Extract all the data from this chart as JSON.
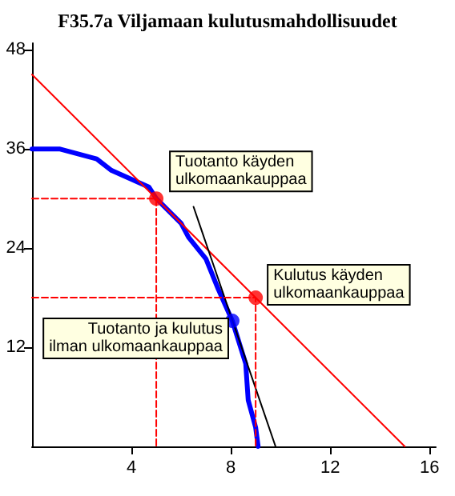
{
  "chart_data": {
    "type": "line",
    "title": "F35.7a Viljamaan kulutusmahdollisuudet",
    "xlim": [
      0,
      16.25
    ],
    "ylim": [
      0,
      48.8
    ],
    "xticks": [
      4,
      8,
      12,
      16
    ],
    "yticks": [
      12,
      24,
      36,
      48
    ],
    "grid": false,
    "series": [
      {
        "color": "#0000ff",
        "marker": "none",
        "line_style": "solid",
        "x": [
          0,
          1.1,
          2.6,
          3.2,
          4.7,
          5,
          6,
          6.3,
          7,
          7.5,
          8.06,
          8.6,
          8.7,
          9,
          9.1
        ],
        "values": [
          36,
          36,
          34.8,
          33.4,
          31.4,
          30,
          27,
          25.3,
          22.7,
          19,
          15.2,
          10,
          5.6,
          2.3,
          0
        ]
      },
      {
        "color": "#ff0000",
        "marker": "none",
        "line_style": "solid",
        "x": [
          0,
          15
        ],
        "values": [
          45,
          0
        ]
      },
      {
        "color": "#000000",
        "marker": "none",
        "line_style": "solid",
        "x": [
          6.5,
          9.8
        ],
        "values": [
          29,
          0
        ]
      },
      {
        "color": "#ff0000",
        "marker": "none",
        "line_style": "dashed",
        "x": [
          0,
          5,
          5
        ],
        "values": [
          30,
          30,
          0
        ]
      },
      {
        "color": "#ff0000",
        "marker": "none",
        "line_style": "dashed",
        "x": [
          0,
          9,
          9
        ],
        "values": [
          18,
          18,
          0
        ]
      },
      {
        "type": "scatter",
        "color": "#ff0000",
        "marker": "circle",
        "x": [
          5,
          9
        ],
        "values": [
          30,
          18
        ]
      },
      {
        "type": "scatter",
        "color": "#0000ff",
        "marker": "circle",
        "x": [
          8.06
        ],
        "values": [
          15.2
        ]
      }
    ],
    "annotations": [
      {
        "text": "Tuotanto käyden\nulkomaankauppaa",
        "x": 5,
        "y": 30
      },
      {
        "text": "Kulutus käyden\nulkomaankauppaa",
        "x": 9,
        "y": 18
      },
      {
        "text": "Tuotanto ja kulutus\nilman ulkomaankauppaa",
        "x": 8.06,
        "y": 15.2
      }
    ]
  }
}
